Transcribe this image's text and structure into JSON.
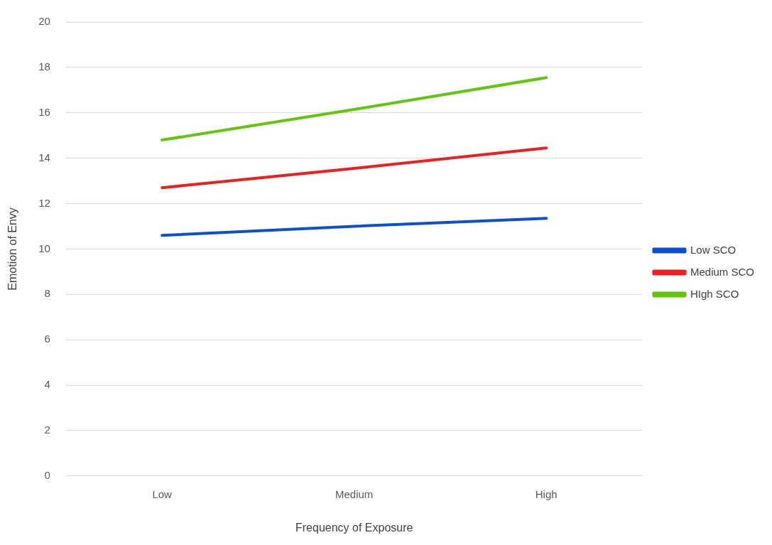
{
  "chart_data": {
    "type": "line",
    "xlabel": "Frequency of Exposure",
    "ylabel": "Emotion of Envy",
    "categories": [
      "Low",
      "Medium",
      "High"
    ],
    "series": [
      {
        "name": "Low SCO",
        "color": "#0b4fd6",
        "values": [
          10.6,
          11.0,
          11.35
        ]
      },
      {
        "name": "Medium SCO",
        "color": "#f01e1e",
        "values": [
          12.7,
          13.55,
          14.45
        ]
      },
      {
        "name": "HIgh SCO",
        "color": "#62c60a",
        "values": [
          14.8,
          16.15,
          17.55
        ]
      }
    ],
    "ylim": [
      0,
      20
    ],
    "yticks": [
      0,
      2,
      4,
      6,
      8,
      10,
      12,
      14,
      16,
      18,
      20
    ],
    "grid": "y",
    "legend": "right",
    "marker": "none",
    "line_style": "solid"
  }
}
